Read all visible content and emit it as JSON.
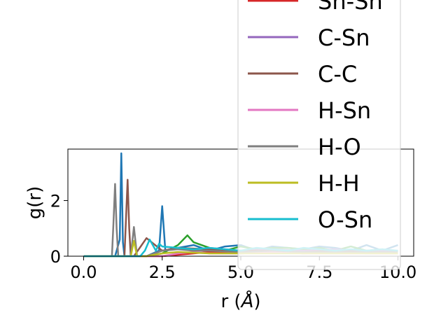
{
  "chart_data": {
    "type": "line",
    "xlabel": "r (",
    "xlabel_unit": "Å",
    "xlabel_close": ")",
    "ylabel": "g(r)",
    "xlim": [
      -0.5,
      10.5
    ],
    "ylim": [
      0,
      3.85
    ],
    "xticks": [
      "0.0",
      "2.5",
      "5.0",
      "7.5",
      "10.0"
    ],
    "yticks": [
      "0",
      "2"
    ],
    "grid": false,
    "legend_placement": "top-right (extends above plot area)",
    "series": [
      {
        "name": "",
        "color": "#1f77b4",
        "x": [
          0,
          0.5,
          1.0,
          1.15,
          1.2,
          1.25,
          1.3,
          2.0,
          2.4,
          2.5,
          2.6,
          3.0,
          3.5,
          4.0,
          4.5,
          5.0,
          5.5,
          6.0,
          6.5,
          7.0,
          7.5,
          8.0,
          8.5,
          9.0,
          9.5,
          10.0
        ],
        "y": [
          0,
          0,
          0,
          0.6,
          3.7,
          0.5,
          0,
          0,
          0.2,
          1.8,
          0.2,
          0.3,
          0.4,
          0.2,
          0.35,
          0.4,
          0.2,
          0.35,
          0.3,
          0.25,
          0.35,
          0.3,
          0.2,
          0.4,
          0.2,
          0.4
        ]
      },
      {
        "name": "",
        "color": "#2ca02c",
        "x": [
          0,
          2.0,
          2.5,
          3.0,
          3.3,
          3.5,
          4.0,
          4.5,
          5.0,
          5.5,
          6.0,
          6.5,
          7.0,
          7.5,
          8.0,
          8.5,
          9.0,
          9.5,
          10.0
        ],
        "y": [
          0,
          0,
          0.1,
          0.4,
          0.75,
          0.5,
          0.3,
          0.2,
          0.35,
          0.25,
          0.3,
          0.3,
          0.25,
          0.3,
          0.2,
          0.35,
          0.2,
          0.25,
          0.15
        ]
      },
      {
        "name": "Sn-Sn",
        "color": "#d62728",
        "x": [
          0,
          2.5,
          3.0,
          3.5,
          4.0,
          5.0,
          6.0,
          7.0,
          8.0,
          9.0,
          10.0
        ],
        "y": [
          0,
          0,
          0.05,
          0.1,
          0.15,
          0.1,
          0.15,
          0.1,
          0.15,
          0.1,
          0.1
        ]
      },
      {
        "name": "C-Sn",
        "color": "#9467bd",
        "x": [
          0,
          2.0,
          2.5,
          3.0,
          3.5,
          4.0,
          5.0,
          6.0,
          7.0,
          8.0,
          9.0,
          10.0
        ],
        "y": [
          0,
          0,
          0.2,
          0.3,
          0.25,
          0.3,
          0.2,
          0.25,
          0.2,
          0.25,
          0.2,
          0.2
        ]
      },
      {
        "name": "C-C",
        "color": "#8c564b",
        "x": [
          0,
          1.3,
          1.4,
          1.45,
          1.5,
          1.6,
          2.0,
          2.5,
          3.0,
          4.0,
          5.0,
          6.0,
          7.0,
          8.0,
          9.0,
          10.0
        ],
        "y": [
          0,
          0,
          2.75,
          1.0,
          0,
          0,
          0.65,
          0.2,
          0.3,
          0.25,
          0.2,
          0.2,
          0.15,
          0.2,
          0.15,
          0.15
        ]
      },
      {
        "name": "H-Sn",
        "color": "#e377c2",
        "x": [
          0,
          2.5,
          3.0,
          3.5,
          4.0,
          5.0,
          6.0,
          7.0,
          8.0,
          9.0,
          10.0
        ],
        "y": [
          0,
          0,
          0.1,
          0.15,
          0.1,
          0.1,
          0.15,
          0.1,
          0.1,
          0.1,
          0.1
        ]
      },
      {
        "name": "H-O",
        "color": "#7f7f7f",
        "x": [
          0,
          0.9,
          0.95,
          1.0,
          1.05,
          1.1,
          1.5,
          1.6,
          1.7,
          2.0,
          2.5,
          3.0,
          3.5,
          4.0,
          5.0,
          6.0,
          7.0,
          8.0,
          9.0,
          10.0
        ],
        "y": [
          0,
          0,
          1.2,
          2.6,
          1.0,
          0,
          0,
          1.05,
          0,
          0,
          0.2,
          0.25,
          0.2,
          0.2,
          0.15,
          0.2,
          0.15,
          0.15,
          0.15,
          0.15
        ]
      },
      {
        "name": "H-H",
        "color": "#bcbd22",
        "x": [
          0,
          1.5,
          1.6,
          1.7,
          2.0,
          2.5,
          3.0,
          4.0,
          5.0,
          6.0,
          7.0,
          8.0,
          9.0,
          10.0
        ],
        "y": [
          0,
          0,
          0.55,
          0,
          0,
          0.1,
          0.15,
          0.1,
          0.1,
          0.1,
          0.1,
          0.1,
          0.1,
          0.1
        ]
      },
      {
        "name": "O-Sn",
        "color": "#17becf",
        "x": [
          0,
          1.8,
          1.95,
          2.1,
          2.3,
          2.4,
          2.5,
          3.0,
          3.5,
          4.0,
          4.5,
          5.0,
          5.5,
          6.0,
          6.5,
          7.0,
          7.5,
          8.0,
          8.5,
          9.0,
          9.5,
          10.0
        ],
        "y": [
          0,
          0,
          0.2,
          0.6,
          0.2,
          0.45,
          0.35,
          0.3,
          0.25,
          0.3,
          0.25,
          0.2,
          0.3,
          0.25,
          0.2,
          0.3,
          0.25,
          0.2,
          0.25,
          0.2,
          0.25,
          0.2
        ]
      }
    ]
  }
}
